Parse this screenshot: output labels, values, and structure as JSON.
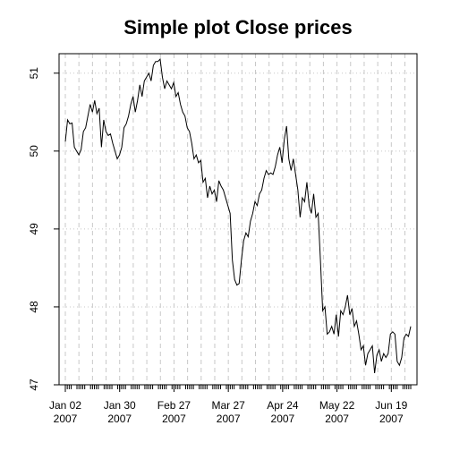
{
  "chart_data": {
    "type": "line",
    "title": "Simple plot Close prices",
    "xlabel": "",
    "ylabel": "",
    "ylim": [
      47,
      51.25
    ],
    "grid": true,
    "y_ticks": [
      "47",
      "48",
      "49",
      "50",
      "51"
    ],
    "x_ticks": [
      {
        "date": "2007-01-02",
        "label1": "Jan 02",
        "label2": "2007"
      },
      {
        "date": "2007-01-30",
        "label1": "Jan 30",
        "label2": "2007"
      },
      {
        "date": "2007-02-27",
        "label1": "Feb 27",
        "label2": "2007"
      },
      {
        "date": "2007-03-27",
        "label1": "Mar 27",
        "label2": "2007"
      },
      {
        "date": "2007-04-24",
        "label1": "Apr 24",
        "label2": "2007"
      },
      {
        "date": "2007-05-22",
        "label1": "May 22",
        "label2": "2007"
      },
      {
        "date": "2007-06-19",
        "label1": "Jun 19",
        "label2": "2007"
      }
    ],
    "x_start": "2007-01-02",
    "x_end": "2007-06-29",
    "series": [
      {
        "values": [
          50.12,
          50.4,
          50.35,
          50.36,
          50.05,
          50.0,
          49.95,
          50.02,
          50.25,
          50.3,
          50.45,
          50.6,
          50.5,
          50.65,
          50.48,
          50.55,
          50.05,
          50.4,
          50.25,
          50.2,
          50.22,
          50.1,
          50.0,
          49.9,
          49.95,
          50.05,
          50.3,
          50.35,
          50.45,
          50.6,
          50.7,
          50.5,
          50.65,
          50.85,
          50.7,
          50.9,
          50.95,
          51.0,
          50.9,
          51.1,
          51.15,
          51.15,
          51.18,
          50.95,
          50.8,
          50.9,
          50.85,
          50.8,
          50.88,
          50.7,
          50.75,
          50.6,
          50.5,
          50.45,
          50.3,
          50.25,
          50.1,
          49.9,
          49.95,
          49.85,
          49.88,
          49.6,
          49.65,
          49.4,
          49.55,
          49.45,
          49.5,
          49.35,
          49.62,
          49.55,
          49.5,
          49.4,
          49.3,
          49.2,
          48.6,
          48.35,
          48.28,
          48.3,
          48.6,
          48.85,
          48.95,
          48.9,
          49.1,
          49.2,
          49.35,
          49.3,
          49.45,
          49.5,
          49.65,
          49.75,
          49.7,
          49.72,
          49.7,
          49.8,
          49.95,
          50.05,
          49.85,
          50.15,
          50.32,
          49.9,
          49.75,
          49.9,
          49.7,
          49.5,
          49.15,
          49.4,
          49.35,
          49.6,
          49.3,
          49.2,
          49.45,
          49.15,
          49.2,
          48.6,
          47.95,
          48.0,
          47.65,
          47.68,
          47.75,
          47.65,
          47.9,
          47.62,
          47.95,
          47.9,
          48.0,
          48.15,
          47.9,
          47.98,
          47.75,
          47.82,
          47.65,
          47.45,
          47.5,
          47.25,
          47.4,
          47.45,
          47.5,
          47.15,
          47.38,
          47.45,
          47.3,
          47.4,
          47.35,
          47.4,
          47.65,
          47.68,
          47.65,
          47.3,
          47.25,
          47.35,
          47.6,
          47.65,
          47.62,
          47.75
        ]
      }
    ]
  }
}
